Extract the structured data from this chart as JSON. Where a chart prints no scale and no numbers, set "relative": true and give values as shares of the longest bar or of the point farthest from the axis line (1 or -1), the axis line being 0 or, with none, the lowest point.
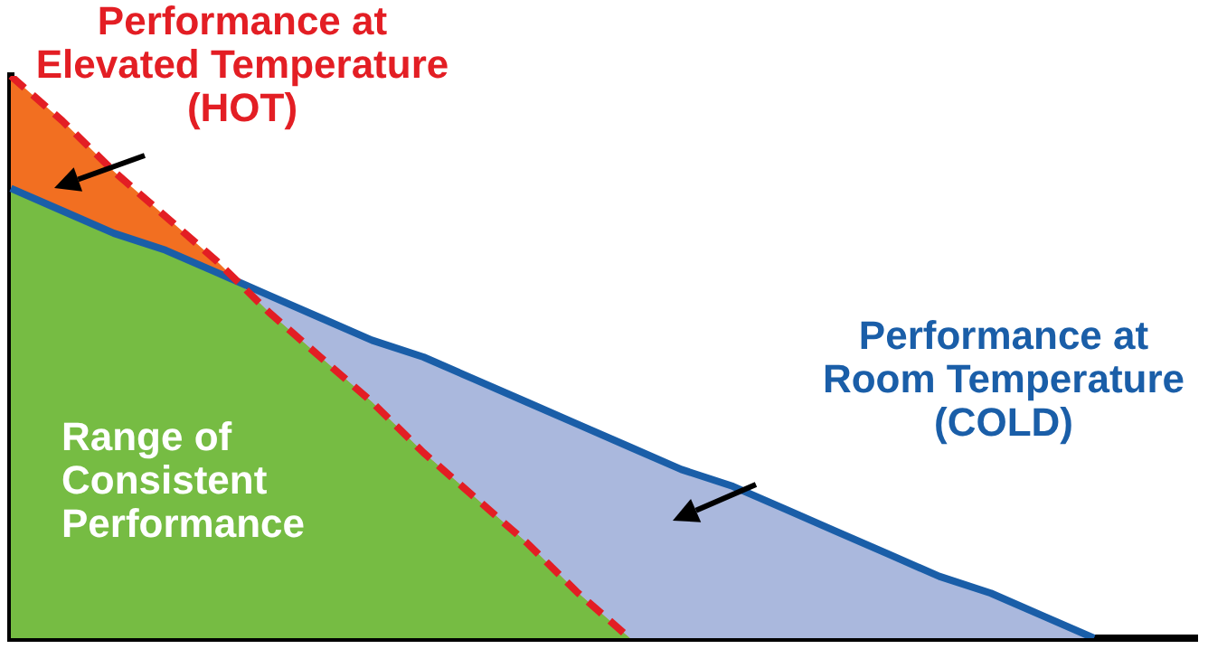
{
  "chart_data": {
    "type": "line",
    "relative": true,
    "legend": false,
    "grid": false,
    "marker": "none",
    "categories": [
      null,
      null,
      null,
      null,
      null,
      null,
      null,
      null,
      null,
      null,
      null,
      null,
      null,
      null,
      null,
      null,
      null,
      null,
      null,
      null,
      null,
      null,
      null,
      null
    ],
    "series": [
      {
        "name": "Performance at Elevated Temperature (HOT)",
        "color": "#e31e24",
        "line_style": "dashed",
        "values": [
          1,
          0.92,
          0.83,
          0.75,
          0.67,
          0.58,
          0.5,
          0.42,
          0.33,
          0.25,
          0.17,
          0.08,
          0,
          null,
          null,
          null,
          null,
          null,
          null,
          null,
          null,
          null,
          null,
          null
        ]
      },
      {
        "name": "Performance at Room Temperature (COLD)",
        "color": "#1a5ea8",
        "line_style": "solid",
        "values": [
          0.8,
          0.76,
          0.72,
          0.69,
          0.65,
          0.61,
          0.57,
          0.53,
          0.5,
          0.46,
          0.42,
          0.38,
          0.34,
          0.3,
          0.27,
          0.23,
          0.19,
          0.15,
          0.11,
          0.08,
          0.04,
          0,
          null,
          null
        ]
      }
    ],
    "annotations": [
      "Range of Consistent Performance"
    ]
  }
}
